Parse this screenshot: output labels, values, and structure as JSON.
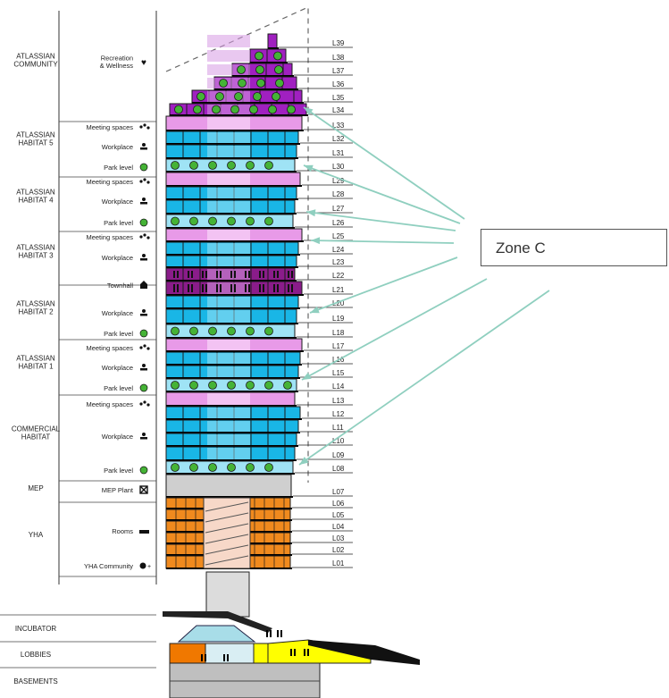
{
  "zone": {
    "label": "Zone C"
  },
  "colors": {
    "community": "#a020c0",
    "community_light": "#d79be3",
    "meeting": "#e89ae8",
    "workplace": "#19b6e6",
    "workplace_light": "#9fe3f5",
    "townhall": "#8a1c8a",
    "yha": "#f08a1e",
    "mep": "#cfcfcf",
    "tree": "#45b336",
    "arrow": "#8fcfbf",
    "lobby_yellow": "#ffff00",
    "lobby_orange": "#f07800"
  },
  "groups": [
    {
      "label": "ATLASSIAN\nCOMMUNITY"
    },
    {
      "label": "ATLASSIAN\nHABITAT 5"
    },
    {
      "label": "ATLASSIAN\nHABITAT 4"
    },
    {
      "label": "ATLASSIAN\nHABITAT 3"
    },
    {
      "label": "ATLASSIAN\nHABITAT 2"
    },
    {
      "label": "ATLASSIAN\nHABITAT 1"
    },
    {
      "label": "COMMERCIAL\nHABITAT"
    },
    {
      "label": "MEP"
    },
    {
      "label": "YHA"
    },
    {
      "label": "INCUBATOR"
    },
    {
      "label": "LOBBIES"
    },
    {
      "label": "BASEMENTS"
    }
  ],
  "functions": [
    {
      "label": "Recreation\n& Wellness",
      "icon": "heart-icon"
    },
    {
      "label": "Meeting spaces",
      "icon": "people-icon"
    },
    {
      "label": "Workplace",
      "icon": "desk-icon"
    },
    {
      "label": "Park level",
      "icon": "tree-icon"
    },
    {
      "label": "Meeting spaces",
      "icon": "people-icon"
    },
    {
      "label": "Workplace",
      "icon": "desk-icon"
    },
    {
      "label": "Park level",
      "icon": "tree-icon"
    },
    {
      "label": "Meeting spaces",
      "icon": "people-icon"
    },
    {
      "label": "Workplace",
      "icon": "desk-icon"
    },
    {
      "label": "Townhall",
      "icon": "house-icon"
    },
    {
      "label": "Workplace",
      "icon": "desk-icon"
    },
    {
      "label": "Park level",
      "icon": "tree-icon"
    },
    {
      "label": "Meeting spaces",
      "icon": "people-icon"
    },
    {
      "label": "Workplace",
      "icon": "desk-icon"
    },
    {
      "label": "Park level",
      "icon": "tree-icon"
    },
    {
      "label": "Meeting spaces",
      "icon": "people-icon"
    },
    {
      "label": "Workplace",
      "icon": "desk-icon"
    },
    {
      "label": "Park level",
      "icon": "tree-icon"
    },
    {
      "label": "MEP Plant",
      "icon": "crossed-box-icon"
    },
    {
      "label": "Rooms",
      "icon": "bed-icon"
    },
    {
      "label": "YHA Community",
      "icon": "community-icon"
    }
  ],
  "levels": [
    {
      "label": "L39",
      "use": "community"
    },
    {
      "label": "L38",
      "use": "community"
    },
    {
      "label": "L37",
      "use": "community"
    },
    {
      "label": "L36",
      "use": "community"
    },
    {
      "label": "L35",
      "use": "community"
    },
    {
      "label": "L34",
      "use": "community"
    },
    {
      "label": "L33",
      "use": "meeting"
    },
    {
      "label": "L32",
      "use": "workplace"
    },
    {
      "label": "L31",
      "use": "workplace"
    },
    {
      "label": "L30",
      "use": "park"
    },
    {
      "label": "L29",
      "use": "meeting"
    },
    {
      "label": "L28",
      "use": "workplace"
    },
    {
      "label": "L27",
      "use": "workplace"
    },
    {
      "label": "L26",
      "use": "park"
    },
    {
      "label": "L25",
      "use": "meeting"
    },
    {
      "label": "L24",
      "use": "workplace"
    },
    {
      "label": "L23",
      "use": "workplace"
    },
    {
      "label": "L22",
      "use": "townhall"
    },
    {
      "label": "L21",
      "use": "townhall"
    },
    {
      "label": "L20",
      "use": "workplace"
    },
    {
      "label": "L19",
      "use": "workplace"
    },
    {
      "label": "L18",
      "use": "park"
    },
    {
      "label": "L17",
      "use": "meeting"
    },
    {
      "label": "L16",
      "use": "workplace"
    },
    {
      "label": "L15",
      "use": "workplace"
    },
    {
      "label": "L14",
      "use": "park"
    },
    {
      "label": "L13",
      "use": "meeting"
    },
    {
      "label": "L12",
      "use": "workplace"
    },
    {
      "label": "L11",
      "use": "workplace"
    },
    {
      "label": "L10",
      "use": "workplace"
    },
    {
      "label": "L09",
      "use": "workplace"
    },
    {
      "label": "L08",
      "use": "park"
    },
    {
      "label": "L07",
      "use": "mep"
    },
    {
      "label": "L06",
      "use": "yha"
    },
    {
      "label": "L05",
      "use": "yha"
    },
    {
      "label": "L04",
      "use": "yha"
    },
    {
      "label": "L03",
      "use": "yha"
    },
    {
      "label": "L02",
      "use": "yha"
    },
    {
      "label": "L01",
      "use": "yha"
    }
  ]
}
